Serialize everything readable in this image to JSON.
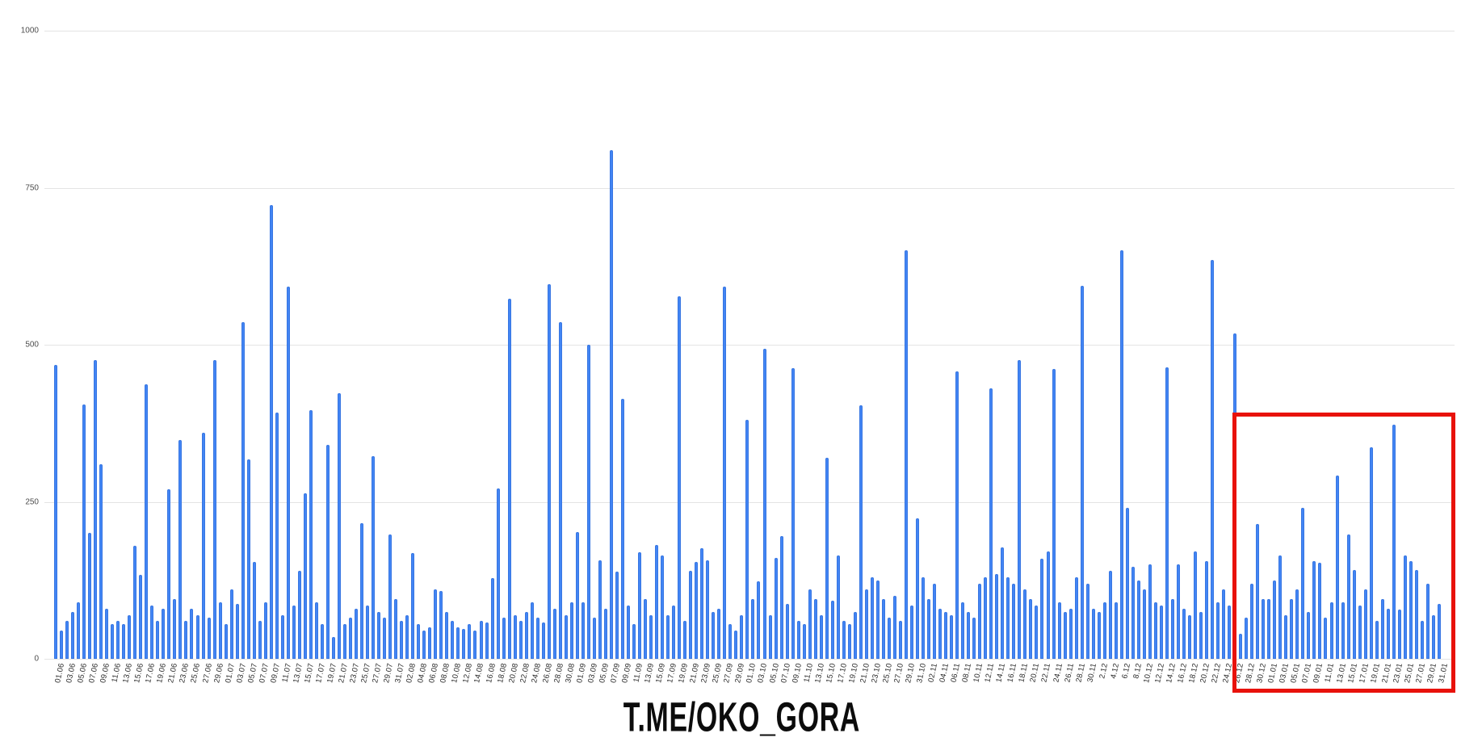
{
  "chart_data": {
    "type": "bar",
    "title": "",
    "xlabel": "",
    "ylabel": "",
    "legend": "none",
    "grid": true,
    "ylim": [
      0,
      1000
    ],
    "y_ticks": [
      0,
      250,
      500,
      750,
      1000
    ],
    "x_tick_every": 2,
    "bar_color": "#4285f4",
    "x": [
      "01.06",
      "02.06",
      "03.06",
      "04.06",
      "05.06",
      "06.06",
      "07.06",
      "08.06",
      "09.06",
      "10.06",
      "11.06",
      "12.06",
      "13.06",
      "14.06",
      "15.06",
      "16.06",
      "17.06",
      "18.06",
      "19.06",
      "20.06",
      "21.06",
      "22.06",
      "23.06",
      "24.06",
      "25.06",
      "26.06",
      "27.06",
      "28.06",
      "29.06",
      "30.06",
      "01.07",
      "02.07",
      "03.07",
      "04.07",
      "05.07",
      "06.07",
      "07.07",
      "08.07",
      "09.07",
      "10.07",
      "11.07",
      "12.07",
      "13.07",
      "14.07",
      "15.07",
      "16.07",
      "17.07",
      "18.07",
      "19.07",
      "20.07",
      "21.07",
      "22.07",
      "23.07",
      "24.07",
      "25.07",
      "26.07",
      "27.07",
      "28.07",
      "29.07",
      "30.07",
      "31.07",
      "01.08",
      "02.08",
      "03.08",
      "04.08",
      "05.08",
      "06.08",
      "07.08",
      "08.08",
      "09.08",
      "10.08",
      "11.08",
      "12.08",
      "13.08",
      "14.08",
      "15.08",
      "16.08",
      "17.08",
      "18.08",
      "19.08",
      "20.08",
      "21.08",
      "22.08",
      "23.08",
      "24.08",
      "25.08",
      "26.08",
      "27.08",
      "28.08",
      "29.08",
      "30.08",
      "31.08",
      "01.09",
      "02.09",
      "03.09",
      "04.09",
      "05.09",
      "06.09",
      "07.09",
      "08.09",
      "09.09",
      "10.09",
      "11.09",
      "12.09",
      "13.09",
      "14.09",
      "15.09",
      "16.09",
      "17.09",
      "18.09",
      "19.09",
      "20.09",
      "21.09",
      "22.09",
      "23.09",
      "24.09",
      "25.09",
      "26.09",
      "27.09",
      "28.09",
      "29.09",
      "30.09",
      "01.10",
      "02.10",
      "03.10",
      "04.10",
      "05.10",
      "06.10",
      "07.10",
      "08.10",
      "09.10",
      "10.10",
      "11.10",
      "12.10",
      "13.10",
      "14.10",
      "15.10",
      "16.10",
      "17.10",
      "18.10",
      "19.10",
      "20.10",
      "21.10",
      "22.10",
      "23.10",
      "24.10",
      "25.10",
      "26.10",
      "27.10",
      "28.10",
      "29.10",
      "30.10",
      "31.10",
      "01.11",
      "02.11",
      "03.11",
      "04.11",
      "05.11",
      "06.11",
      "07.11",
      "08.11",
      "09.11",
      "10.11",
      "11.11",
      "12.11",
      "13.11",
      "14.11",
      "15.11",
      "16.11",
      "17.11",
      "18.11",
      "19.11",
      "20.11",
      "21.11",
      "22.11",
      "23.11",
      "24.11",
      "25.11",
      "26.11",
      "27.11",
      "28.11",
      "29.11",
      "30.11",
      "01.12",
      "2.12",
      "03.12",
      "4.12",
      "05.12",
      "6.12",
      "07.12",
      "8.12",
      "09.12",
      "10.12",
      "11.12",
      "12.12",
      "13.12",
      "14.12",
      "15.12",
      "16.12",
      "17.12",
      "18.12",
      "19.12",
      "20.12",
      "21.12",
      "22.12",
      "23.12",
      "24.12",
      "25.12",
      "26.12",
      "27.12",
      "28.12",
      "29.12",
      "30.12",
      "31.12",
      "01.01",
      "02.01",
      "03.01",
      "04.01",
      "05.01",
      "06.01",
      "07.01",
      "08.01",
      "09.01",
      "10.01",
      "11.01",
      "12.01",
      "13.01",
      "14.01",
      "15.01",
      "16.01",
      "17.01",
      "18.01",
      "19.01",
      "20.01",
      "21.01",
      "22.01",
      "23.01",
      "24.01",
      "25.01",
      "26.01",
      "27.01",
      "28.01",
      "29.01",
      "30.01",
      "31.01"
    ],
    "values": [
      468,
      45,
      60,
      75,
      90,
      405,
      200,
      476,
      310,
      80,
      55,
      60,
      55,
      70,
      180,
      134,
      437,
      85,
      60,
      80,
      270,
      95,
      348,
      60,
      80,
      70,
      360,
      65,
      476,
      90,
      55,
      110,
      88,
      536,
      318,
      154,
      60,
      90,
      723,
      392,
      70,
      593,
      85,
      140,
      263,
      396,
      90,
      55,
      340,
      35,
      423,
      55,
      65,
      80,
      216,
      85,
      322,
      75,
      65,
      198,
      95,
      60,
      70,
      168,
      55,
      45,
      50,
      110,
      108,
      75,
      60,
      50,
      48,
      55,
      45,
      60,
      58,
      128,
      271,
      65,
      573,
      70,
      60,
      75,
      90,
      65,
      58,
      597,
      80,
      536,
      70,
      90,
      202,
      90,
      500,
      65,
      157,
      80,
      810,
      139,
      414,
      85,
      55,
      170,
      95,
      70,
      181,
      165,
      70,
      85,
      577,
      60,
      140,
      154,
      176,
      157,
      75,
      80,
      593,
      55,
      45,
      70,
      380,
      95,
      123,
      494,
      70,
      161,
      195,
      88,
      463,
      60,
      55,
      110,
      95,
      70,
      320,
      92,
      165,
      60,
      55,
      75,
      404,
      110,
      130,
      125,
      95,
      65,
      100,
      60,
      651,
      85,
      224,
      130,
      95,
      120,
      80,
      75,
      70,
      457,
      90,
      75,
      65,
      120,
      130,
      430,
      135,
      177,
      130,
      120,
      475,
      110,
      95,
      85,
      160,
      171,
      461,
      90,
      75,
      80,
      130,
      594,
      120,
      80,
      75,
      90,
      140,
      90,
      651,
      241,
      147,
      125,
      110,
      150,
      90,
      85,
      464,
      95,
      150,
      80,
      70,
      171,
      75,
      155,
      635,
      90,
      110,
      85,
      518,
      40,
      65,
      120,
      215,
      95,
      95,
      125,
      164,
      70,
      95,
      110,
      240,
      75,
      155,
      153,
      65,
      90,
      292,
      90,
      198,
      142,
      85,
      110,
      337,
      60,
      95,
      80,
      373,
      78,
      165,
      155,
      142,
      60,
      120,
      70,
      88
    ],
    "highlight_box": {
      "color": "#e8120b",
      "date_range_start": "27.12",
      "date_range_end": "31.01"
    }
  },
  "watermark": {
    "text": "T.ME/OKO_GORA"
  }
}
